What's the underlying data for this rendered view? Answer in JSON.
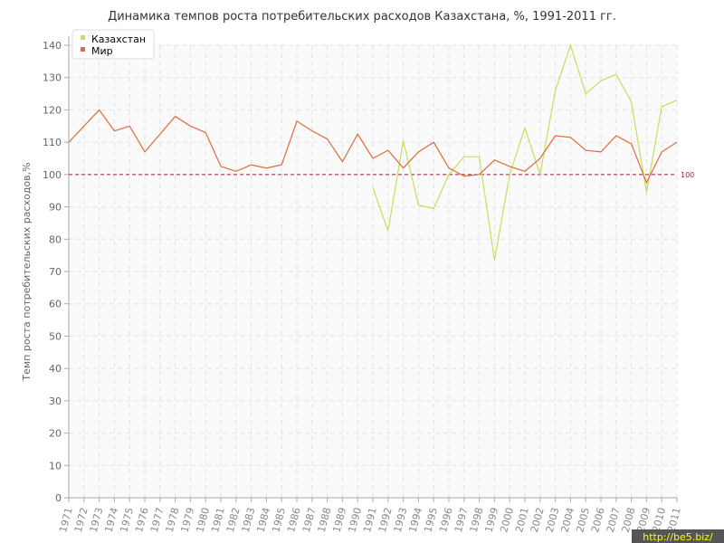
{
  "chart_data": {
    "type": "line",
    "title": "Динамика темпов роста потребительских расходов Казахстана, %, 1991-2011 гг.",
    "xlabel": "",
    "ylabel": "Темп роста потребительских расходов,%",
    "ylim": [
      0,
      140
    ],
    "yticks": [
      0,
      10,
      20,
      30,
      40,
      50,
      60,
      70,
      80,
      90,
      100,
      110,
      120,
      130,
      140
    ],
    "grid": true,
    "legend_position": "top-left",
    "x": [
      "1971",
      "1972",
      "1973",
      "1974",
      "1975",
      "1976",
      "1977",
      "1978",
      "1979",
      "1980",
      "1981",
      "1982",
      "1983",
      "1984",
      "1985",
      "1986",
      "1987",
      "1988",
      "1989",
      "1990",
      "1991",
      "1992",
      "1993",
      "1994",
      "1995",
      "1996",
      "1997",
      "1998",
      "1999",
      "2000",
      "2001",
      "2002",
      "2003",
      "2004",
      "2005",
      "2006",
      "2007",
      "2008",
      "2009",
      "2010",
      "2011"
    ],
    "series": [
      {
        "name": "Казахстан",
        "color": "#c3e05b",
        "values": [
          null,
          null,
          null,
          null,
          null,
          null,
          null,
          null,
          null,
          null,
          null,
          null,
          null,
          null,
          null,
          null,
          null,
          null,
          null,
          null,
          96,
          82.5,
          110.5,
          90.5,
          89.5,
          100,
          105.5,
          105.5,
          73.5,
          100,
          114.5,
          100,
          126,
          140,
          125,
          129,
          131,
          122.5,
          94.5,
          121,
          123
        ]
      },
      {
        "name": "Мир",
        "color": "#e06a3c",
        "values": [
          110,
          115,
          120,
          113.5,
          115,
          107,
          112.5,
          118,
          115,
          113,
          102.5,
          101,
          103,
          102,
          103,
          116.5,
          113.5,
          111,
          104,
          112.5,
          105,
          107.5,
          102,
          107,
          110,
          102,
          99.5,
          100,
          104.5,
          102.5,
          101,
          105,
          112,
          111.5,
          107.5,
          107,
          112,
          109.5,
          97.5,
          107,
          110
        ]
      }
    ],
    "reference_line": {
      "value": 100,
      "label": "100",
      "color": "#9b1c3c"
    }
  },
  "watermark": "http://be5.biz/"
}
